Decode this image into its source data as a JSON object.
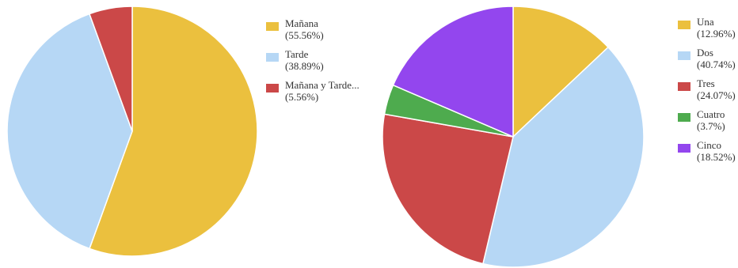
{
  "chart_data": [
    {
      "type": "pie",
      "slices": [
        {
          "label": "Mañana",
          "value": 55.56,
          "pct_label": "(55.56%)",
          "color": "#EBC03E"
        },
        {
          "label": "Tarde",
          "value": 38.89,
          "pct_label": "(38.89%)",
          "color": "#B6D7F5"
        },
        {
          "label": "Mañana y Tarde...",
          "value": 5.56,
          "pct_label": "(5.56%)",
          "color": "#CB4848"
        }
      ],
      "legend_position": "right"
    },
    {
      "type": "pie",
      "slices": [
        {
          "label": "Una",
          "value": 12.96,
          "pct_label": "(12.96%)",
          "color": "#EBC03E"
        },
        {
          "label": "Dos",
          "value": 40.74,
          "pct_label": "(40.74%)",
          "color": "#B6D7F5"
        },
        {
          "label": "Tres",
          "value": 24.07,
          "pct_label": "(24.07%)",
          "color": "#CB4848"
        },
        {
          "label": "Cuatro",
          "value": 3.7,
          "pct_label": "(3.7%)",
          "color": "#4EAB4E"
        },
        {
          "label": "Cinco",
          "value": 18.52,
          "pct_label": "(18.52%)",
          "color": "#9346EE"
        }
      ],
      "legend_position": "right"
    }
  ]
}
